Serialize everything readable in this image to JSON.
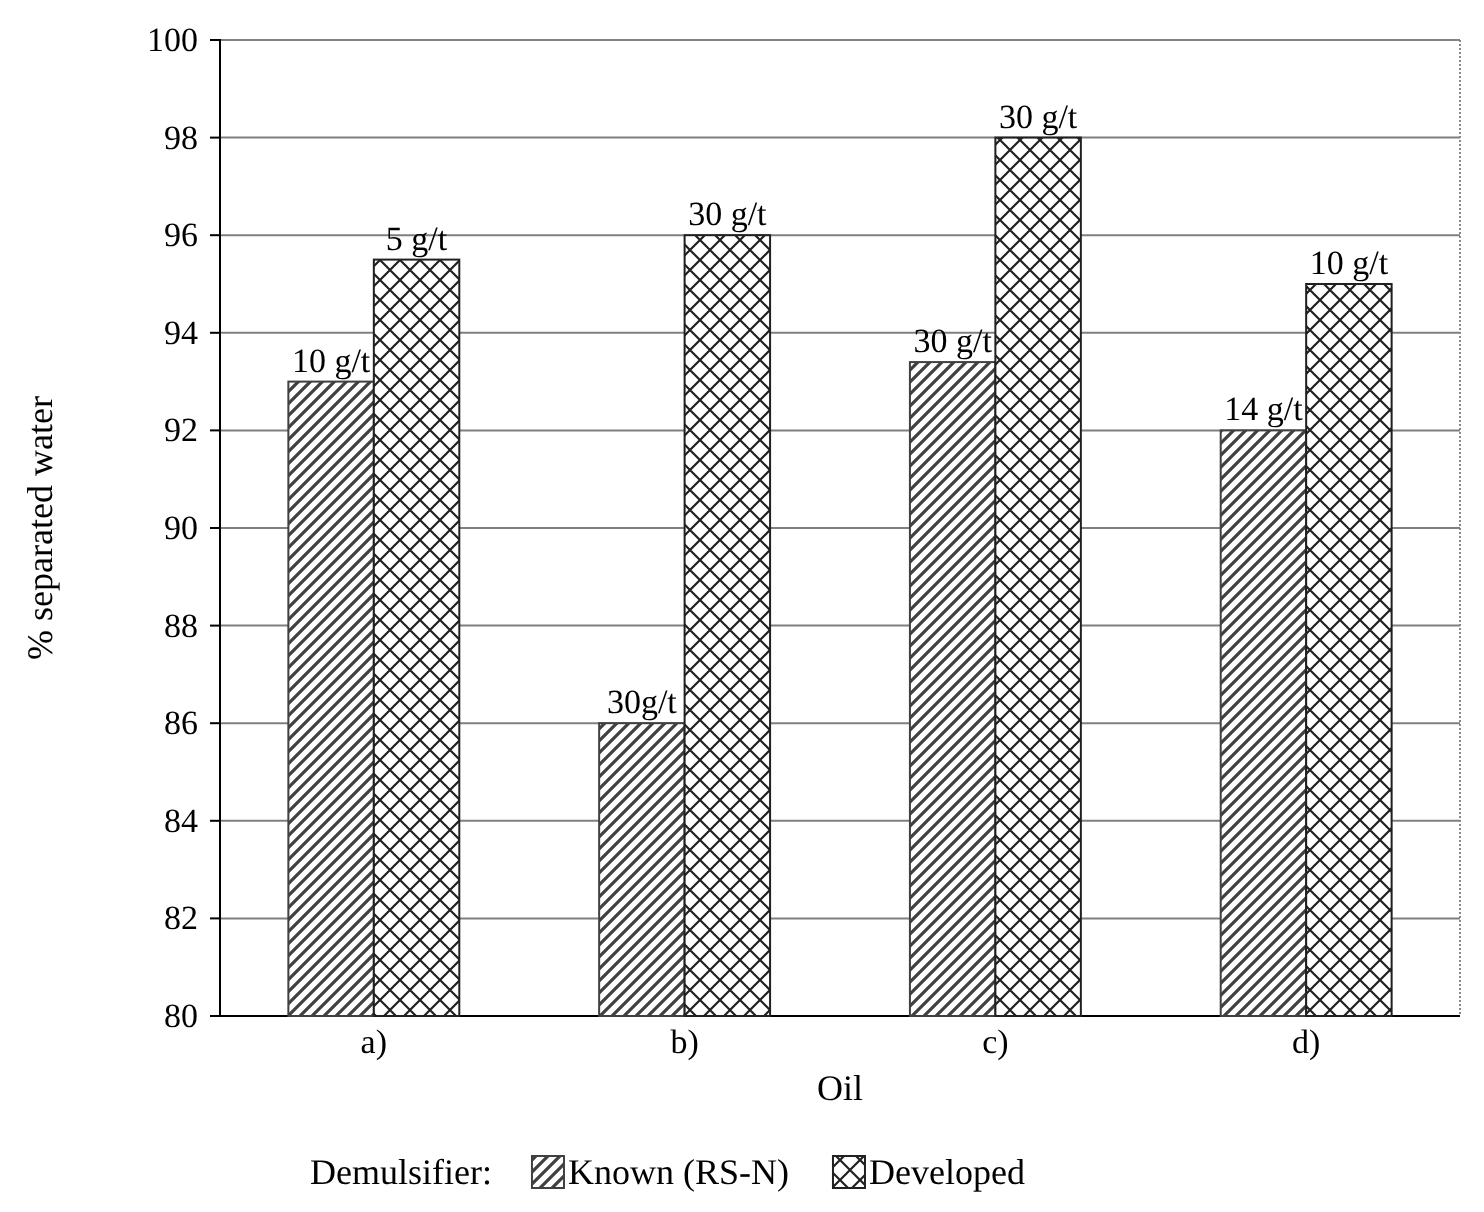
{
  "chart_data": {
    "type": "bar",
    "xlabel": "Oil",
    "ylabel": "% separated water",
    "legend_title": "Demulsifier:",
    "categories": [
      "a)",
      "b)",
      "c)",
      "d)"
    ],
    "series": [
      {
        "name": "Known (RS-N)",
        "color": "#404040",
        "values": [
          93,
          86,
          93.4,
          92
        ]
      },
      {
        "name": "Developed",
        "color": "#202020",
        "values": [
          95.5,
          96,
          98,
          95
        ]
      }
    ],
    "annotations": [
      {
        "text": "10 g/t",
        "x": "a)",
        "y": 93
      },
      {
        "text": "5 g/t",
        "x": "a)",
        "y": 95.5
      },
      {
        "text": "30g/t",
        "x": "b)",
        "y": 86
      },
      {
        "text": "30 g/t",
        "x": "b)",
        "y": 96
      },
      {
        "text": "30 g/t",
        "x": "c)",
        "y": 93.4
      },
      {
        "text": "30 g/t",
        "x": "c)",
        "y": 98
      },
      {
        "text": "14 g/t",
        "x": "d)",
        "y": 92
      },
      {
        "text": "10 g/t",
        "x": "d)",
        "y": 95
      }
    ],
    "ylim": [
      80,
      100
    ],
    "yticks": [
      80,
      82,
      84,
      86,
      88,
      90,
      92,
      94,
      96,
      98,
      100
    ],
    "grid": "y",
    "legend": "bottom"
  }
}
